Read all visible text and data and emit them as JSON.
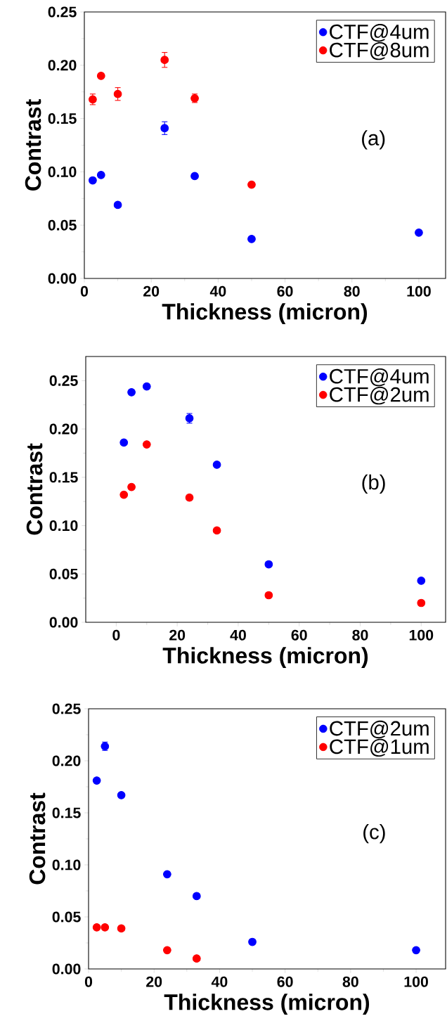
{
  "chart_data": [
    {
      "type": "scatter",
      "xlabel": "Thickness (micron)",
      "ylabel": "Contrast",
      "xlim": [
        0,
        108
      ],
      "ylim": [
        0,
        0.25
      ],
      "xticks": [
        0,
        20,
        40,
        60,
        80,
        100
      ],
      "yticks": [
        {
          "value": 0,
          "label": "0.00"
        },
        {
          "value": 0.05,
          "label": "0.05"
        },
        {
          "value": 0.1,
          "label": "0.10"
        },
        {
          "value": 0.15,
          "label": "0.15"
        },
        {
          "value": 0.2,
          "label": "0.20"
        },
        {
          "value": 0.25,
          "label": "0.25"
        }
      ],
      "legend": "top right",
      "marker": "circle",
      "annotations": [
        "(a)"
      ],
      "series": [
        {
          "name": "CTF@4um",
          "color": "#0000ff",
          "x": [
            2.5,
            5,
            10,
            24,
            33,
            50,
            100
          ],
          "values": [
            0.092,
            0.097,
            0.069,
            0.141,
            0.096,
            0.037,
            0.043
          ],
          "errors": [
            null,
            null,
            null,
            0.006,
            null,
            null,
            null
          ]
        },
        {
          "name": "CTF@8um",
          "color": "#ff0000",
          "x": [
            2.5,
            5,
            10,
            24,
            33,
            50
          ],
          "values": [
            0.168,
            0.19,
            0.173,
            0.205,
            0.169,
            0.088
          ],
          "errors": [
            0.005,
            null,
            0.006,
            0.007,
            0.004,
            null
          ]
        }
      ]
    },
    {
      "type": "scatter",
      "xlabel": "Thickness (micron)",
      "ylabel": "Contrast",
      "xlim": [
        -10,
        108
      ],
      "ylim": [
        0,
        0.275
      ],
      "xticks": [
        0,
        20,
        40,
        60,
        80,
        100
      ],
      "yticks": [
        {
          "value": 0,
          "label": "0.00"
        },
        {
          "value": 0.05,
          "label": "0.05"
        },
        {
          "value": 0.1,
          "label": "0.10"
        },
        {
          "value": 0.15,
          "label": "0.15"
        },
        {
          "value": 0.2,
          "label": "0.20"
        },
        {
          "value": 0.25,
          "label": "0.25"
        }
      ],
      "legend": "top right",
      "marker": "circle",
      "annotations": [
        "(b)"
      ],
      "series": [
        {
          "name": "CTF@4um",
          "color": "#0000ff",
          "x": [
            2.5,
            5,
            10,
            24,
            33,
            50,
            100
          ],
          "values": [
            0.186,
            0.238,
            0.244,
            0.211,
            0.163,
            0.06,
            0.043
          ],
          "errors": [
            null,
            null,
            null,
            0.005,
            null,
            null,
            null
          ]
        },
        {
          "name": "CTF@2um",
          "color": "#ff0000",
          "x": [
            2.5,
            5,
            10,
            24,
            33,
            50,
            100
          ],
          "values": [
            0.132,
            0.14,
            0.184,
            0.129,
            0.095,
            0.028,
            0.02
          ],
          "errors": [
            null,
            null,
            null,
            null,
            null,
            null,
            null
          ]
        }
      ]
    },
    {
      "type": "scatter",
      "xlabel": "Thickness (micron)",
      "ylabel": "Contrast",
      "xlim": [
        0,
        109
      ],
      "ylim": [
        0,
        0.25
      ],
      "xticks": [
        0,
        20,
        40,
        60,
        80,
        100
      ],
      "yticks": [
        {
          "value": 0,
          "label": "0.00"
        },
        {
          "value": 0.05,
          "label": "0.05"
        },
        {
          "value": 0.1,
          "label": "0.10"
        },
        {
          "value": 0.15,
          "label": "0.15"
        },
        {
          "value": 0.2,
          "label": "0.20"
        },
        {
          "value": 0.25,
          "label": "0.25"
        }
      ],
      "legend": "top right",
      "marker": "circle",
      "annotations": [
        "(c)"
      ],
      "series": [
        {
          "name": "CTF@2um",
          "color": "#0000ff",
          "x": [
            2.5,
            5,
            10,
            24,
            33,
            50,
            100
          ],
          "values": [
            0.181,
            0.214,
            0.167,
            0.091,
            0.07,
            0.026,
            0.018
          ],
          "errors": [
            null,
            0.004,
            null,
            null,
            null,
            null,
            null
          ]
        },
        {
          "name": "CTF@1um",
          "color": "#ff0000",
          "x": [
            2.5,
            5,
            10,
            24,
            33
          ],
          "values": [
            0.04,
            0.04,
            0.039,
            0.018,
            0.01
          ],
          "errors": [
            null,
            null,
            null,
            null,
            null
          ]
        }
      ]
    }
  ]
}
